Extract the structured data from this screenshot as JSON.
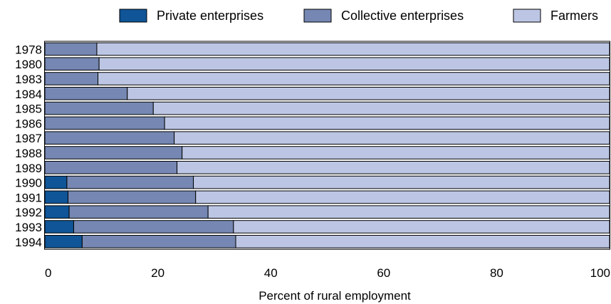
{
  "chart_data": {
    "type": "bar",
    "orientation": "horizontal",
    "stacked": true,
    "title": "",
    "xlabel": "Percent of rural employment",
    "ylabel": "",
    "xlim": [
      0,
      100
    ],
    "x_ticks": [
      0,
      20,
      40,
      60,
      80,
      100
    ],
    "grid": false,
    "legend_position": "top",
    "categories": [
      "1978",
      "1980",
      "1983",
      "1984",
      "1985",
      "1986",
      "1987",
      "1988",
      "1989",
      "1990",
      "1991",
      "1992",
      "1993",
      "1994"
    ],
    "series": [
      {
        "name": "Private enterprises",
        "color": "#0f5597",
        "values": [
          0,
          0,
          0,
          0,
          0,
          0,
          0,
          0,
          0,
          3.9,
          4.1,
          4.3,
          5.1,
          6.6
        ]
      },
      {
        "name": "Collective enterprises",
        "color": "#7587b2",
        "values": [
          9.2,
          9.6,
          9.4,
          14.6,
          19.2,
          21.2,
          22.9,
          24.3,
          23.4,
          22.4,
          22.6,
          24.6,
          28.3,
          27.2
        ]
      },
      {
        "name": "Farmers",
        "color": "#bcc6e4",
        "values": [
          90.8,
          90.4,
          90.6,
          85.4,
          80.8,
          78.8,
          77.1,
          75.7,
          76.6,
          73.7,
          73.3,
          71.1,
          66.6,
          66.2
        ]
      }
    ]
  }
}
